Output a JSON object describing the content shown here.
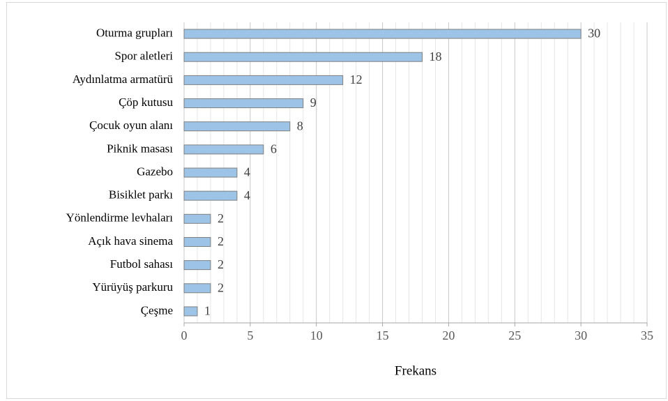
{
  "chart_data": {
    "type": "hbar",
    "categories": [
      "Oturma grupları",
      "Spor aletleri",
      "Aydınlatma armatürü",
      "Çöp kutusu",
      "Çocuk oyun alanı",
      "Piknik masası",
      "Gazebo",
      "Bisiklet parkı",
      "Yönlendirme levhaları",
      "Açık hava sinema",
      "Futbol sahası",
      "Yürüyüş parkuru",
      "Çeşme"
    ],
    "values": [
      30,
      18,
      12,
      9,
      8,
      6,
      4,
      4,
      2,
      2,
      2,
      2,
      1
    ],
    "color": "#9dc3e6",
    "edge_color": "#7f7f7f",
    "xlabel": "Frekans",
    "xlim": [
      0,
      35
    ],
    "xticks": [
      0,
      5,
      10,
      15,
      20,
      25,
      30,
      35
    ],
    "xminorticks": [
      1,
      2,
      3,
      4,
      6,
      7,
      8,
      9,
      11,
      12,
      13,
      14,
      16,
      17,
      18,
      19,
      21,
      22,
      23,
      24,
      26,
      27,
      28,
      29,
      31,
      32,
      33,
      34
    ],
    "grid": true
  }
}
